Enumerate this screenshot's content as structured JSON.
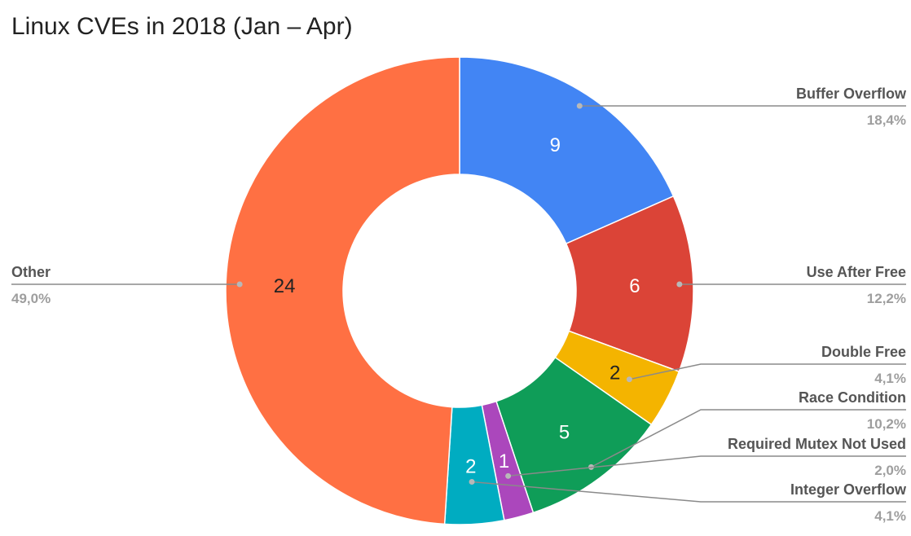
{
  "chart_data": {
    "type": "pie",
    "donut": true,
    "title": "Linux CVEs in 2018 (Jan – Apr)",
    "start_angle_deg": 0,
    "slices": [
      {
        "label": "Buffer Overflow",
        "value": 9,
        "percent": "18,4%",
        "color": "#4285F4",
        "value_color": "#ffffff"
      },
      {
        "label": "Use After Free",
        "value": 6,
        "percent": "12,2%",
        "color": "#DB4437",
        "value_color": "#ffffff"
      },
      {
        "label": "Double Free",
        "value": 2,
        "percent": "4,1%",
        "color": "#F4B400",
        "value_color": "#222222"
      },
      {
        "label": "Race Condition",
        "value": 5,
        "percent": "10,2%",
        "color": "#0F9D58",
        "value_color": "#ffffff"
      },
      {
        "label": "Required Mutex Not Used",
        "value": 1,
        "percent": "2,0%",
        "color": "#AB47BC",
        "value_color": "#ffffff"
      },
      {
        "label": "Integer Overflow",
        "value": 2,
        "percent": "4,1%",
        "color": "#00ACC1",
        "value_color": "#ffffff"
      },
      {
        "label": "Other",
        "value": 24,
        "percent": "49,0%",
        "color": "#FF7043",
        "value_color": "#222222"
      }
    ],
    "legend": "callout labels"
  }
}
